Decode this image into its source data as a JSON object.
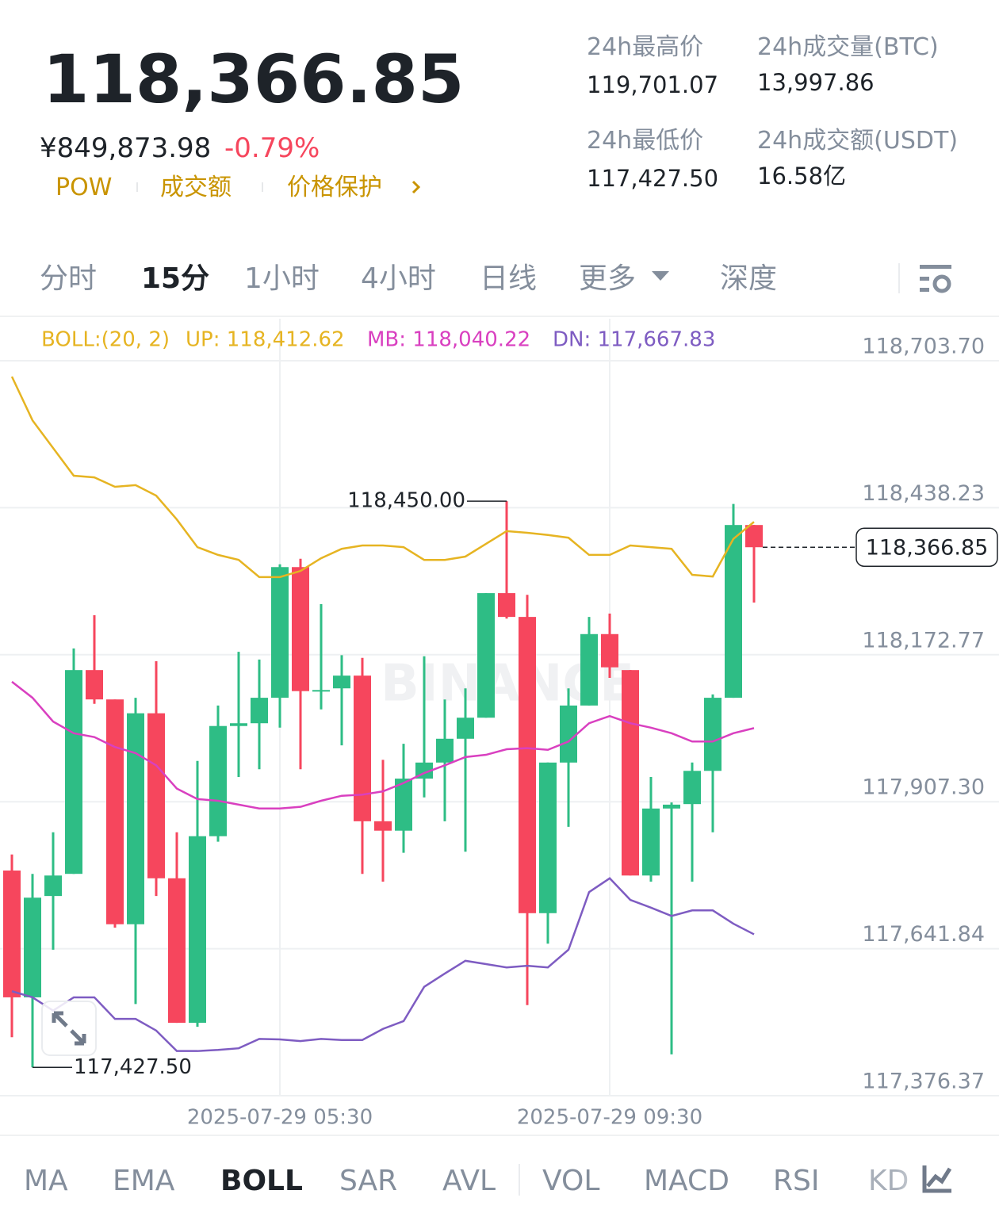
{
  "header": {
    "price": "118,366.85",
    "cny": "¥849,873.98",
    "change": "-0.79%",
    "tags": [
      "POW",
      "成交额",
      "价格保护"
    ]
  },
  "stats": [
    {
      "label": "24h最高价",
      "value": "119,701.07"
    },
    {
      "label": "24h成交量(BTC)",
      "value": "13,997.86"
    },
    {
      "label": "24h最低价",
      "value": "117,427.50"
    },
    {
      "label": "24h成交额(USDT)",
      "value": "16.58亿"
    }
  ],
  "tabs": [
    "分时",
    "15分",
    "1小时",
    "4小时",
    "日线",
    "更多",
    "深度"
  ],
  "indicators": [
    "MA",
    "EMA",
    "BOLL",
    "SAR",
    "AVL",
    "VOL",
    "MACD",
    "RSI",
    "KD"
  ],
  "chart_data": {
    "type": "candlestick",
    "indicator_label": "BOLL:(20, 2)",
    "watermark": "BINANCE",
    "categories": [
      null,
      null,
      null,
      null,
      null,
      null,
      null,
      null,
      null,
      null,
      null,
      null,
      null,
      "2025-07-29 05:30",
      null,
      null,
      null,
      null,
      null,
      null,
      null,
      null,
      null,
      null,
      null,
      null,
      null,
      null,
      null,
      "2025-07-29 09:30",
      null,
      null,
      null,
      null,
      null,
      null,
      null
    ],
    "open": [
      117783,
      117554,
      117737,
      117777,
      118145,
      118092,
      117686,
      118067,
      117769,
      117508,
      117845,
      118044,
      118049,
      118095,
      118331,
      118107,
      118112,
      118135,
      117872,
      117855,
      117949,
      117978,
      118021,
      118059,
      118284,
      118241,
      117706,
      117978,
      118081,
      118210,
      118145,
      117774,
      117895,
      117903,
      117963,
      118095,
      118407
    ],
    "high": [
      117812,
      117777,
      117852,
      118184,
      118244,
      118092,
      118095,
      118161,
      117852,
      117981,
      118081,
      118178,
      118164,
      118336,
      118346,
      118264,
      118172,
      118167,
      117983,
      118012,
      118170,
      118092,
      118112,
      118284,
      118450,
      118281,
      117978,
      118112,
      118241,
      118247,
      118145,
      117952,
      117906,
      117978,
      118101,
      118445,
      118407
    ],
    "low": [
      117482,
      117427.5,
      117640,
      117777,
      118084,
      117680,
      117542,
      117737,
      117508,
      117501,
      117835,
      117952,
      117966,
      118041,
      117966,
      118074,
      118009,
      117777,
      117763,
      117815,
      117915,
      117872,
      117817,
      118059,
      118238,
      117540,
      117651,
      117862,
      118081,
      118131,
      117774,
      117763,
      117451,
      117763,
      117852,
      118095,
      118267
    ],
    "close": [
      117554,
      117734,
      117774,
      118145,
      118092,
      117686,
      118067,
      117769,
      117508,
      117845,
      118044,
      118049,
      118095,
      118331,
      118107,
      118109,
      118135,
      117872,
      117855,
      117949,
      117978,
      118021,
      118059,
      118284,
      118241,
      117706,
      117978,
      118081,
      118210,
      118150,
      117774,
      117895,
      117902,
      117963,
      118095,
      118407,
      118366.85
    ],
    "up_color": "#2ebd85",
    "down_color": "#f6465d",
    "series": [
      {
        "name": "UP: 118,412.62",
        "color": "#e6b422",
        "values": [
          118675,
          118596,
          118546,
          118496,
          118493,
          118476,
          118479,
          118460,
          118417,
          118367,
          118353,
          118344,
          118313,
          118313,
          118324,
          118347,
          118364,
          118370,
          118370,
          118367,
          118344,
          118344,
          118350,
          118373,
          118396,
          118393,
          118389,
          118384,
          118353,
          118353,
          118370,
          118367,
          118364,
          118317,
          118314,
          118382,
          118412.62
        ]
      },
      {
        "name": "MB: 118,040.22",
        "color": "#d940c0",
        "values": [
          118124,
          118095,
          118052,
          118031,
          118024,
          118006,
          117995,
          117973,
          117931,
          117912,
          117909,
          117902,
          117895,
          117895,
          117898,
          117909,
          117918,
          117920,
          117926,
          117941,
          117959,
          117973,
          117988,
          117992,
          118002,
          118004,
          118001,
          118016,
          118049,
          118062,
          118049,
          118041,
          118031,
          118016,
          118016,
          118031,
          118040.22
        ]
      },
      {
        "name": "DN: 117,667.83",
        "color": "#7e5cc2",
        "values": [
          117565,
          117554,
          117530,
          117554,
          117554,
          117515,
          117515,
          117494,
          117457,
          117457,
          117459,
          117462,
          117479,
          117478,
          117475,
          117479,
          117477,
          117477,
          117497,
          117511,
          117573,
          117597,
          117620,
          117614,
          117608,
          117611,
          117608,
          117640,
          117744,
          117769,
          117730,
          117716,
          117701,
          117711,
          117711,
          117687,
          117667.83
        ]
      }
    ],
    "annotations": [
      {
        "kind": "high",
        "value": 118450,
        "label": "118,450.00"
      },
      {
        "kind": "low",
        "value": 117427.5,
        "label": "117,427.50"
      },
      {
        "kind": "last",
        "value": 118366.85,
        "label": "118,366.85"
      }
    ],
    "ylim": [
      117376.37,
      118782.4
    ],
    "yticks": [
      {
        "value": 118703.7,
        "label": "118,703.70"
      },
      {
        "value": 118438.23,
        "label": "118,438.23"
      },
      {
        "value": 118172.77,
        "label": "118,172.77"
      },
      {
        "value": 117907.3,
        "label": "117,907.30"
      },
      {
        "value": 117641.84,
        "label": "117,641.84"
      },
      {
        "value": 117376.37,
        "label": "117,376.37"
      }
    ],
    "grid": true
  }
}
